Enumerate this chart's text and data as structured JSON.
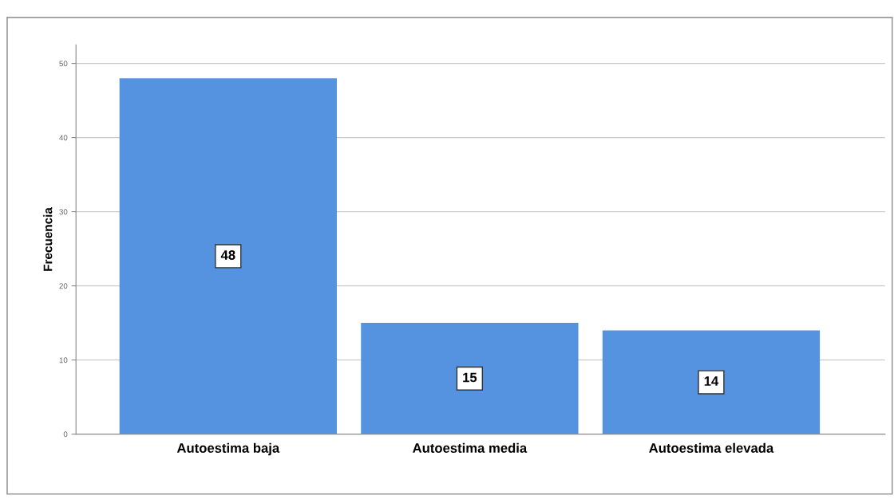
{
  "chart_data": {
    "type": "bar",
    "ylabel": "Frecuencia",
    "categories": [
      "Autoestima baja",
      "Autoestima media",
      "Autoestima elevada"
    ],
    "values": [
      48,
      15,
      14
    ],
    "color": "#5592e0",
    "ylim": [
      0,
      52.5
    ],
    "yticks": [
      0,
      10,
      20,
      30,
      40,
      50
    ],
    "grid": "y",
    "data_labels": true
  }
}
